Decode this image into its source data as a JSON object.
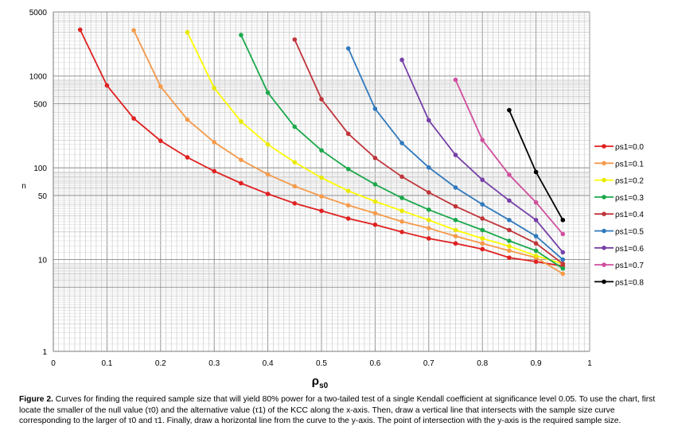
{
  "chart_data": {
    "type": "line",
    "y_scale": "log",
    "title": "",
    "xlabel": "ρs0",
    "ylabel": "n",
    "xlim": [
      0,
      1
    ],
    "ylim": [
      1,
      5000
    ],
    "x_ticks": [
      "0",
      "0.1",
      "0.2",
      "0.3",
      "0.4",
      "0.5",
      "0.6",
      "0.7",
      "0.8",
      "0.9",
      "1"
    ],
    "y_ticks": [
      {
        "value": 1,
        "label": "1"
      },
      {
        "value": 10,
        "label": "10"
      },
      {
        "value": 50,
        "label": "50"
      },
      {
        "value": 100,
        "label": "100"
      },
      {
        "value": 500,
        "label": "500"
      },
      {
        "value": 1000,
        "label": "1000"
      },
      {
        "value": 5000,
        "label": "5000"
      }
    ],
    "grid": true,
    "legend_position": "right",
    "series": [
      {
        "name": "ρs1=0.0",
        "color": "#e02020",
        "x": [
          0.05,
          0.1,
          0.15,
          0.2,
          0.25,
          0.3,
          0.35,
          0.4,
          0.45,
          0.5,
          0.55,
          0.6,
          0.65,
          0.7,
          0.75,
          0.8,
          0.85,
          0.9,
          0.95
        ],
        "y": [
          3200,
          790,
          345,
          197,
          130,
          92,
          68,
          52,
          41,
          34,
          28,
          24,
          20,
          17,
          15,
          13,
          10.5,
          9.5,
          8.5
        ]
      },
      {
        "name": "ρs1=0.1",
        "color": "#f59a4a",
        "x": [
          0.15,
          0.2,
          0.25,
          0.3,
          0.35,
          0.4,
          0.45,
          0.5,
          0.55,
          0.6,
          0.65,
          0.7,
          0.75,
          0.8,
          0.85,
          0.9,
          0.95
        ],
        "y": [
          3150,
          770,
          335,
          190,
          122,
          85,
          63,
          49,
          39,
          32,
          26,
          22,
          18,
          15,
          12.5,
          10.5,
          7
        ]
      },
      {
        "name": "ρs1=0.2",
        "color": "#ffff00",
        "x": [
          0.25,
          0.3,
          0.35,
          0.4,
          0.45,
          0.5,
          0.55,
          0.6,
          0.65,
          0.7,
          0.75,
          0.8,
          0.85,
          0.9,
          0.95
        ],
        "y": [
          3000,
          740,
          320,
          180,
          115,
          78,
          56,
          43,
          34,
          27,
          21,
          17,
          14,
          11,
          9
        ]
      },
      {
        "name": "ρs1=0.3",
        "color": "#1aa84a",
        "x": [
          0.35,
          0.4,
          0.45,
          0.5,
          0.55,
          0.6,
          0.65,
          0.7,
          0.75,
          0.8,
          0.85,
          0.9,
          0.95
        ],
        "y": [
          2800,
          660,
          280,
          155,
          97,
          66,
          47,
          35,
          27,
          21,
          16,
          12.5,
          8
        ]
      },
      {
        "name": "ρs1=0.4",
        "color": "#c0343a",
        "x": [
          0.45,
          0.5,
          0.55,
          0.6,
          0.65,
          0.7,
          0.75,
          0.8,
          0.85,
          0.9,
          0.95
        ],
        "y": [
          2500,
          560,
          235,
          128,
          80,
          54,
          38,
          28,
          21,
          15,
          9
        ]
      },
      {
        "name": "ρs1=0.5",
        "color": "#2f79bd",
        "x": [
          0.55,
          0.6,
          0.65,
          0.7,
          0.75,
          0.8,
          0.85,
          0.9,
          0.95
        ],
        "y": [
          2000,
          440,
          186,
          101,
          61,
          40,
          27,
          18,
          10
        ]
      },
      {
        "name": "ρs1=0.6",
        "color": "#7640a8",
        "x": [
          0.65,
          0.7,
          0.75,
          0.8,
          0.85,
          0.9,
          0.95
        ],
        "y": [
          1500,
          330,
          138,
          74,
          44,
          27,
          12
        ]
      },
      {
        "name": "ρs1=0.7",
        "color": "#d04e9e",
        "x": [
          0.75,
          0.8,
          0.85,
          0.9,
          0.95
        ],
        "y": [
          910,
          201,
          84,
          42,
          19
        ]
      },
      {
        "name": "ρs1=0.8",
        "color": "#000000",
        "x": [
          0.85,
          0.9,
          0.95
        ],
        "y": [
          425,
          90,
          27
        ]
      }
    ]
  },
  "caption": {
    "label": "Figure 2.",
    "text": " Curves for finding the required sample size that will yield 80% power for a two-tailed test of a single Kendall coefficient at significance level 0.05. To use the chart, first locate the smaller of the null value (τ0) and the alternative value (τ1) of the KCC along the x-axis. Then, draw a vertical line that intersects with the sample size curve corresponding to the larger of τ0 and τ1. Finally, draw a horizontal line from the curve to the y-axis. The point of intersection with the y-axis is the required sample size."
  }
}
